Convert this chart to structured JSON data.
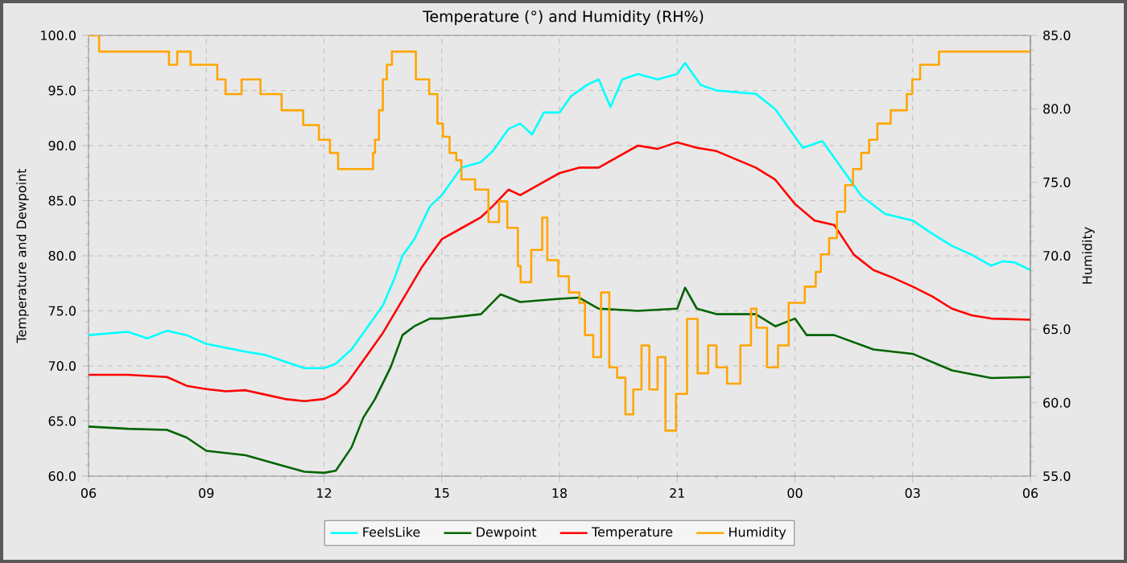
{
  "chart_data": {
    "type": "line",
    "title": "Temperature (°) and Humidity (RH%)",
    "ylabel": "Temperature and Dewpoint",
    "y2label": "Humidity",
    "xlim": [
      6,
      30
    ],
    "xticks": [
      {
        "value": 6,
        "label": "06"
      },
      {
        "value": 9,
        "label": "09"
      },
      {
        "value": 12,
        "label": "12"
      },
      {
        "value": 15,
        "label": "15"
      },
      {
        "value": 18,
        "label": "18"
      },
      {
        "value": 21,
        "label": "21"
      },
      {
        "value": 24,
        "label": "00"
      },
      {
        "value": 27,
        "label": "03"
      },
      {
        "value": 30,
        "label": "06"
      }
    ],
    "ylim": [
      60,
      100
    ],
    "yticks": [
      {
        "value": 60,
        "label": "60.0"
      },
      {
        "value": 65,
        "label": "65.0"
      },
      {
        "value": 70,
        "label": "70.0"
      },
      {
        "value": 75,
        "label": "75.0"
      },
      {
        "value": 80,
        "label": "80.0"
      },
      {
        "value": 85,
        "label": "85.0"
      },
      {
        "value": 90,
        "label": "90.0"
      },
      {
        "value": 95,
        "label": "95.0"
      },
      {
        "value": 100,
        "label": "100.0"
      }
    ],
    "y2lim": [
      55,
      85
    ],
    "y2ticks": [
      {
        "value": 55,
        "label": "55.0"
      },
      {
        "value": 60,
        "label": "60.0"
      },
      {
        "value": 65,
        "label": "65.0"
      },
      {
        "value": 70,
        "label": "70.0"
      },
      {
        "value": 75,
        "label": "75.0"
      },
      {
        "value": 80,
        "label": "80.0"
      },
      {
        "value": 85,
        "label": "85.0"
      }
    ],
    "grid": true,
    "legend": "bottom",
    "series": [
      {
        "name": "FeelsLike",
        "color": "#00ffff",
        "x": [
          6,
          7,
          7.5,
          8,
          8.5,
          9,
          10,
          10.5,
          11,
          11.5,
          12,
          12.3,
          12.7,
          13,
          13.5,
          13.8,
          14,
          14.3,
          14.7,
          15,
          15.5,
          16,
          16.3,
          16.7,
          17,
          17.3,
          17.6,
          18,
          18.3,
          18.7,
          19,
          19.3,
          19.6,
          20,
          20.5,
          21,
          21.2,
          21.6,
          22,
          23,
          23.5,
          23.7,
          24.2,
          24.7,
          25.2,
          25.7,
          26.3,
          27,
          27.5,
          28,
          28.5,
          29,
          29.3,
          29.6,
          30
        ],
        "values": [
          72.8,
          73.1,
          72.5,
          73.2,
          72.8,
          72.0,
          71.3,
          71.0,
          70.4,
          69.8,
          69.8,
          70.2,
          71.5,
          73,
          75.5,
          78,
          80,
          81.5,
          84.5,
          85.5,
          88,
          88.5,
          89.5,
          91.5,
          92,
          91,
          93,
          93,
          94.5,
          95.5,
          96,
          93.5,
          96,
          96.5,
          96,
          96.5,
          97.5,
          95.5,
          95,
          94.7,
          93.3,
          92.3,
          89.8,
          90.4,
          87.9,
          85.4,
          83.8,
          83.2,
          82.0,
          80.9,
          80.1,
          79.1,
          79.5,
          79.4,
          78.7
        ]
      },
      {
        "name": "Dewpoint",
        "color": "#006400",
        "x": [
          6,
          7,
          8,
          8.5,
          9,
          10,
          11,
          11.5,
          12,
          12.3,
          12.7,
          13,
          13.3,
          13.7,
          14,
          14.3,
          14.7,
          15,
          16,
          16.5,
          17,
          18,
          18.5,
          19,
          20,
          21,
          21.2,
          21.5,
          22,
          23,
          23.5,
          24,
          24.3,
          25,
          26,
          27,
          28,
          29,
          30
        ],
        "values": [
          64.5,
          64.3,
          64.2,
          63.5,
          62.3,
          61.9,
          60.9,
          60.4,
          60.3,
          60.5,
          62.6,
          65.3,
          67,
          69.9,
          72.8,
          73.6,
          74.3,
          74.3,
          74.7,
          76.5,
          75.8,
          76.1,
          76.2,
          75.2,
          75.0,
          75.2,
          77.1,
          75.2,
          74.7,
          74.7,
          73.6,
          74.3,
          72.8,
          72.8,
          71.5,
          71.1,
          69.6,
          68.9,
          69.0
        ]
      },
      {
        "name": "Temperature",
        "color": "#ff0000",
        "x": [
          6,
          7,
          8,
          8.5,
          9,
          9.5,
          10,
          10.5,
          11,
          11.5,
          12,
          12.3,
          12.6,
          13,
          13.5,
          14,
          14.5,
          15,
          15.5,
          16,
          16.3,
          16.7,
          17,
          17.5,
          18,
          18.5,
          19,
          19.5,
          20,
          20.5,
          21,
          21.5,
          22,
          23,
          23.5,
          24,
          24.5,
          25,
          25.5,
          26,
          26.5,
          27,
          27.5,
          28,
          28.5,
          29,
          30
        ],
        "values": [
          69.2,
          69.2,
          69.0,
          68.2,
          67.9,
          67.7,
          67.8,
          67.4,
          67.0,
          66.8,
          67.0,
          67.5,
          68.5,
          70.5,
          73,
          76,
          79,
          81.5,
          82.5,
          83.5,
          84.5,
          86,
          85.5,
          86.5,
          87.5,
          88,
          88,
          89,
          90,
          89.7,
          90.3,
          89.8,
          89.5,
          88,
          86.9,
          84.7,
          83.2,
          82.8,
          80.1,
          78.7,
          78,
          77.2,
          76.3,
          75.2,
          74.6,
          74.3,
          74.2
        ]
      },
      {
        "name": "Humidity",
        "color": "#ffa500",
        "type": "step",
        "axis": "y2",
        "x": [
          6,
          6.27,
          8.05,
          8.26,
          8.6,
          9.28,
          9.49,
          9.9,
          10.38,
          10.92,
          11.47,
          11.87,
          12.15,
          12.36,
          13.25,
          13.3,
          13.4,
          13.5,
          13.6,
          13.73,
          14.34,
          14.68,
          14.89,
          15.03,
          15.2,
          15.37,
          15.5,
          15.85,
          16.19,
          16.46,
          16.67,
          16.94,
          17.01,
          17.28,
          17.56,
          17.69,
          17.97,
          18.24,
          18.51,
          18.65,
          18.86,
          19.06,
          19.27,
          19.47,
          19.68,
          19.88,
          20.09,
          20.29,
          20.5,
          20.7,
          20.97,
          21.25,
          21.52,
          21.79,
          22.0,
          22.27,
          22.61,
          22.88,
          23.02,
          23.29,
          23.57,
          23.84,
          24.25,
          24.53,
          24.66,
          24.87,
          25.07,
          25.28,
          25.48,
          25.69,
          25.89,
          26.1,
          26.44,
          26.85,
          26.99,
          27.19,
          27.67,
          30
        ],
        "values": [
          85,
          83.9,
          83.0,
          83.9,
          83.0,
          82.0,
          81.0,
          82.0,
          81.0,
          79.9,
          78.9,
          77.9,
          77.0,
          75.9,
          77.0,
          77.9,
          79.9,
          82.0,
          83.0,
          83.9,
          82.0,
          81.0,
          79.0,
          78.1,
          77.0,
          76.5,
          75.2,
          74.5,
          72.3,
          73.7,
          71.9,
          69.3,
          68.2,
          70.4,
          72.6,
          69.7,
          68.6,
          67.5,
          66.8,
          64.6,
          63.1,
          67.5,
          62.4,
          61.7,
          59.2,
          60.9,
          63.9,
          60.9,
          63.1,
          58.1,
          60.6,
          65.7,
          62.0,
          63.9,
          62.4,
          61.3,
          63.9,
          66.4,
          65.1,
          62.4,
          63.9,
          66.8,
          67.9,
          68.9,
          70.1,
          71.2,
          73.0,
          74.8,
          75.9,
          77.0,
          77.9,
          79.0,
          79.9,
          81.0,
          82.0,
          83.0,
          83.9,
          83.9
        ]
      }
    ]
  }
}
